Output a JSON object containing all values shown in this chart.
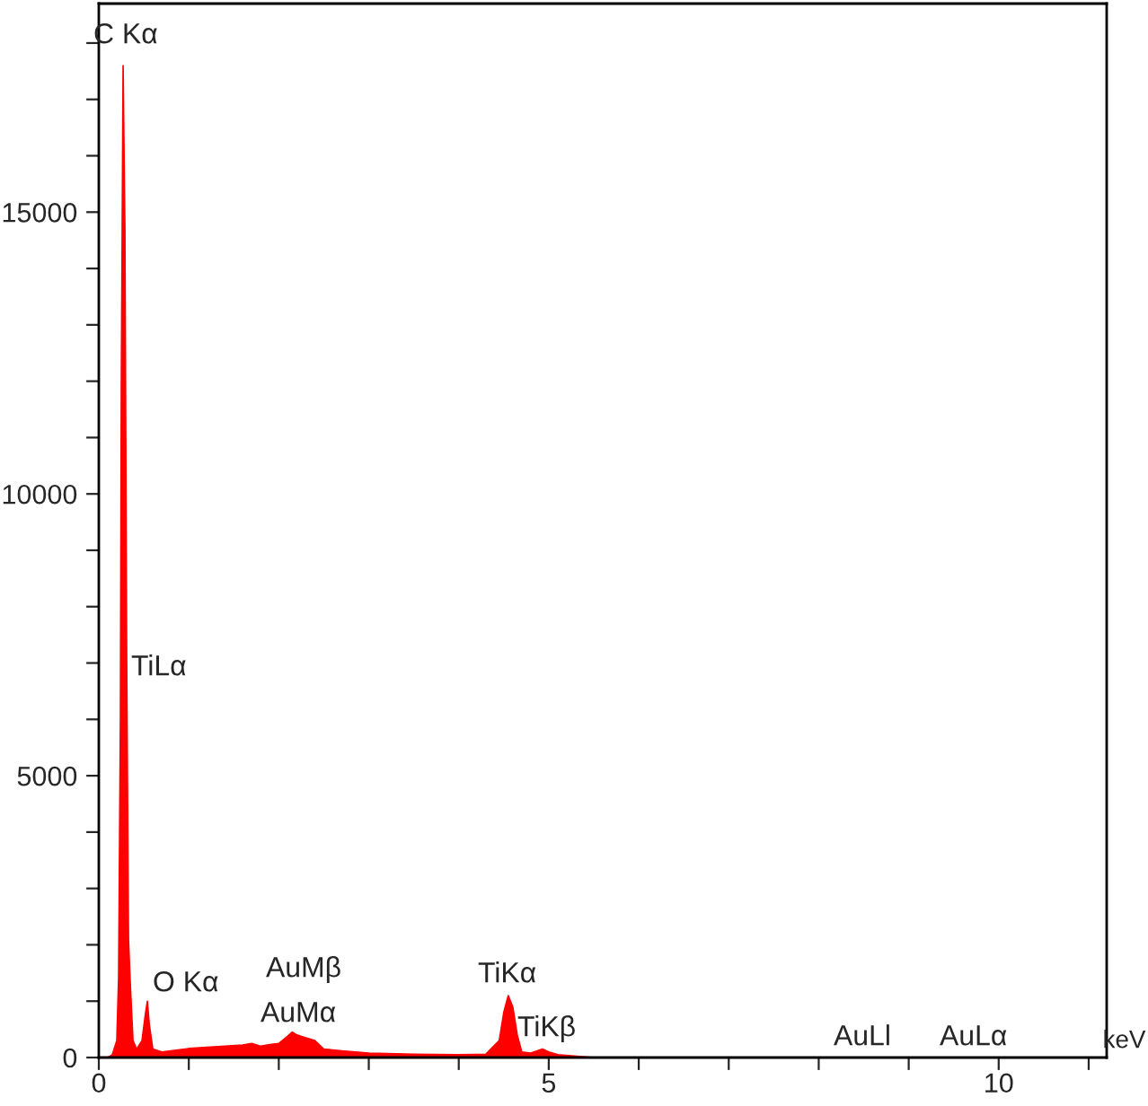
{
  "chart_data": {
    "type": "area",
    "xlabel": "keV",
    "x": [
      0.0,
      0.1,
      0.15,
      0.2,
      0.22,
      0.24,
      0.25,
      0.27,
      0.29,
      0.31,
      0.33,
      0.35,
      0.38,
      0.42,
      0.48,
      0.52,
      0.54,
      0.56,
      0.6,
      0.7,
      0.8,
      1.0,
      1.2,
      1.4,
      1.6,
      1.7,
      1.8,
      1.9,
      2.0,
      2.1,
      2.15,
      2.2,
      2.3,
      2.4,
      2.5,
      2.7,
      3.0,
      3.5,
      4.0,
      4.3,
      4.45,
      4.5,
      4.55,
      4.6,
      4.65,
      4.7,
      4.8,
      4.93,
      5.0,
      5.1,
      5.5,
      11.17
    ],
    "series": [
      {
        "color": "#ff0000",
        "values": [
          0,
          0,
          50,
          300,
          1400,
          6000,
          11900,
          17600,
          14700,
          7000,
          2100,
          1300,
          300,
          150,
          300,
          800,
          1000,
          600,
          150,
          100,
          120,
          160,
          180,
          200,
          220,
          250,
          200,
          230,
          250,
          380,
          450,
          400,
          350,
          300,
          150,
          120,
          80,
          60,
          50,
          60,
          300,
          800,
          1100,
          900,
          400,
          100,
          80,
          150,
          100,
          50,
          0,
          0
        ]
      }
    ],
    "xlim": [
      0,
      11.2
    ],
    "xticks": [
      0,
      {
        "value": 1,
        "label": null
      },
      {
        "value": 2,
        "label": null
      },
      {
        "value": 3,
        "label": null
      },
      {
        "value": 4,
        "label": null
      },
      5,
      {
        "value": 6,
        "label": null
      },
      {
        "value": 7,
        "label": null
      },
      {
        "value": 8,
        "label": null
      },
      {
        "value": 9,
        "label": null
      },
      10,
      {
        "value": 11,
        "label": null
      }
    ],
    "ylim": [
      0,
      18700
    ],
    "yticks": [
      0,
      {
        "value": 1000,
        "label": null
      },
      {
        "value": 2000,
        "label": null
      },
      {
        "value": 3000,
        "label": null
      },
      {
        "value": 4000,
        "label": null
      },
      5000,
      {
        "value": 6000,
        "label": null
      },
      {
        "value": 7000,
        "label": null
      },
      {
        "value": 8000,
        "label": null
      },
      {
        "value": 9000,
        "label": null
      },
      10000,
      {
        "value": 11000,
        "label": null
      },
      {
        "value": 12000,
        "label": null
      },
      {
        "value": 13000,
        "label": null
      },
      {
        "value": 14000,
        "label": null
      },
      15000,
      {
        "value": 16000,
        "label": null
      },
      {
        "value": 17000,
        "label": null
      },
      {
        "value": 18000,
        "label": null
      }
    ],
    "annotations": [
      "C Kα",
      "TiLα",
      "O Kα",
      "AuMβ",
      "AuMα",
      "TiKα",
      "TiKβ",
      "AuLl",
      "AuLα"
    ]
  }
}
